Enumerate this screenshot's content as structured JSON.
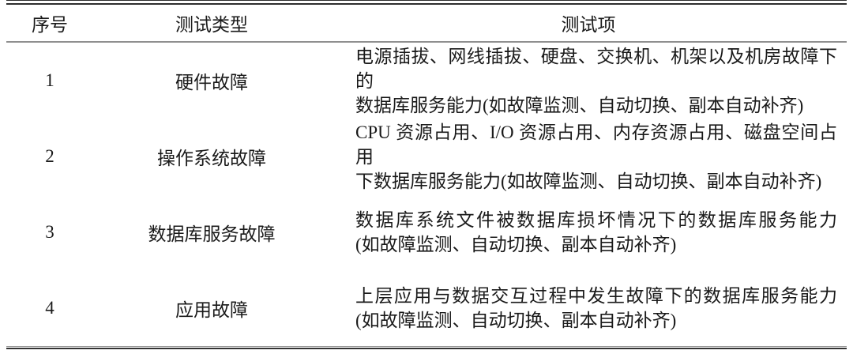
{
  "table": {
    "headers": {
      "no": "序号",
      "type": "测试类型",
      "items": "测试项"
    },
    "rows": [
      {
        "no": "1",
        "type": "硬件故障",
        "lines": [
          "电源插拔、网线插拔、硬盘、交换机、机架以及机房故障下的",
          "数据库服务能力(如故障监测、自动切换、副本自动补齐)"
        ]
      },
      {
        "no": "2",
        "type": "操作系统故障",
        "lines": [
          "CPU 资源占用、I/O 资源占用、内存资源占用、磁盘空间占用",
          "下数据库服务能力(如故障监测、自动切换、副本自动补齐)"
        ]
      },
      {
        "no": "3",
        "type": "数据库服务故障",
        "lines": [
          "数据库系统文件被数据库损坏情况下的数据库服务能力",
          "(如故障监测、自动切换、副本自动补齐)"
        ]
      },
      {
        "no": "4",
        "type": "应用故障",
        "lines": [
          "上层应用与数据交互过程中发生故障下的数据库服务能力",
          "(如故障监测、自动切换、副本自动补齐)"
        ]
      }
    ],
    "colors": {
      "text": "#1a1a1a",
      "rule_dark": "#2e2e2e",
      "rule_gray": "#8f8f8f",
      "background": "#ffffff"
    }
  }
}
